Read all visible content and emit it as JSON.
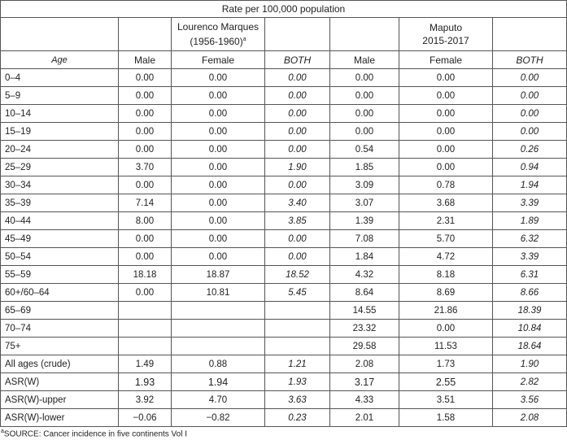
{
  "caption": "Rate per 100,000 population",
  "group1": {
    "line1": "Lourenco Marques",
    "line2": "(1956-1960)",
    "marker": "a"
  },
  "group2": {
    "line1": "Maputo",
    "line2": "2015-2017"
  },
  "headers": {
    "age": "Age",
    "male": "Male",
    "female": "Female",
    "both": "BOTH"
  },
  "rows": [
    {
      "age": "0–4",
      "m1": "0.00",
      "f1": "0.00",
      "b1": "0.00",
      "m2": "0.00",
      "f2": "0.00",
      "b2": "0.00"
    },
    {
      "age": "5–9",
      "m1": "0.00",
      "f1": "0.00",
      "b1": "0.00",
      "m2": "0.00",
      "f2": "0.00",
      "b2": "0.00"
    },
    {
      "age": "10–14",
      "m1": "0.00",
      "f1": "0.00",
      "b1": "0.00",
      "m2": "0.00",
      "f2": "0.00",
      "b2": "0.00"
    },
    {
      "age": "15–19",
      "m1": "0.00",
      "f1": "0.00",
      "b1": "0.00",
      "m2": "0.00",
      "f2": "0.00",
      "b2": "0.00"
    },
    {
      "age": "20–24",
      "m1": "0.00",
      "f1": "0.00",
      "b1": "0.00",
      "m2": "0.54",
      "f2": "0.00",
      "b2": "0.26"
    },
    {
      "age": "25–29",
      "m1": "3.70",
      "f1": "0.00",
      "b1": "1.90",
      "m2": "1.85",
      "f2": "0.00",
      "b2": "0.94"
    },
    {
      "age": "30–34",
      "m1": "0.00",
      "f1": "0.00",
      "b1": "0.00",
      "m2": "3.09",
      "f2": "0.78",
      "b2": "1.94"
    },
    {
      "age": "35–39",
      "m1": "7.14",
      "f1": "0.00",
      "b1": "3.40",
      "m2": "3.07",
      "f2": "3.68",
      "b2": "3.39"
    },
    {
      "age": "40–44",
      "m1": "8.00",
      "f1": "0.00",
      "b1": "3.85",
      "m2": "1.39",
      "f2": "2.31",
      "b2": "1.89"
    },
    {
      "age": "45–49",
      "m1": "0.00",
      "f1": "0.00",
      "b1": "0.00",
      "m2": "7.08",
      "f2": "5.70",
      "b2": "6.32"
    },
    {
      "age": "50–54",
      "m1": "0.00",
      "f1": "0.00",
      "b1": "0.00",
      "m2": "1.84",
      "f2": "4.72",
      "b2": "3.39"
    },
    {
      "age": "55–59",
      "m1": "18.18",
      "f1": "18.87",
      "b1": "18.52",
      "m2": "4.32",
      "f2": "8.18",
      "b2": "6.31"
    },
    {
      "age": "60+/60–64",
      "m1": "0.00",
      "f1": "10.81",
      "b1": "5.45",
      "m2": "8.64",
      "f2": "8.69",
      "b2": "8.66"
    },
    {
      "age": "65–69",
      "m1": "",
      "f1": "",
      "b1": "",
      "m2": "14.55",
      "f2": "21.86",
      "b2": "18.39"
    },
    {
      "age": "70–74",
      "m1": "",
      "f1": "",
      "b1": "",
      "m2": "23.32",
      "f2": "0.00",
      "b2": "10.84"
    },
    {
      "age": "75+",
      "m1": "",
      "f1": "",
      "b1": "",
      "m2": "29.58",
      "f2": "11.53",
      "b2": "18.64"
    },
    {
      "age": "All ages (crude)",
      "m1": "1.49",
      "f1": "0.88",
      "b1": "1.21",
      "m2": "2.08",
      "f2": "1.73",
      "b2": "1.90"
    },
    {
      "age": "ASR(W)",
      "m1": "1.93",
      "f1": "1.94",
      "b1": "1.93",
      "m2": "3.17",
      "f2": "2.55",
      "b2": "2.82",
      "big": true
    },
    {
      "age": "ASR(W)-upper",
      "m1": "3.92",
      "f1": "4.70",
      "b1": "3.63",
      "m2": "4.33",
      "f2": "3.51",
      "b2": "3.56"
    },
    {
      "age": "ASR(W)-lower",
      "m1": "−0.06",
      "f1": "−0.82",
      "b1": "0.23",
      "m2": "2.01",
      "f2": "1.58",
      "b2": "2.08"
    }
  ],
  "footnote": {
    "marker": "a",
    "text": "SOURCE: Cancer incidence in five continents Vol I"
  }
}
